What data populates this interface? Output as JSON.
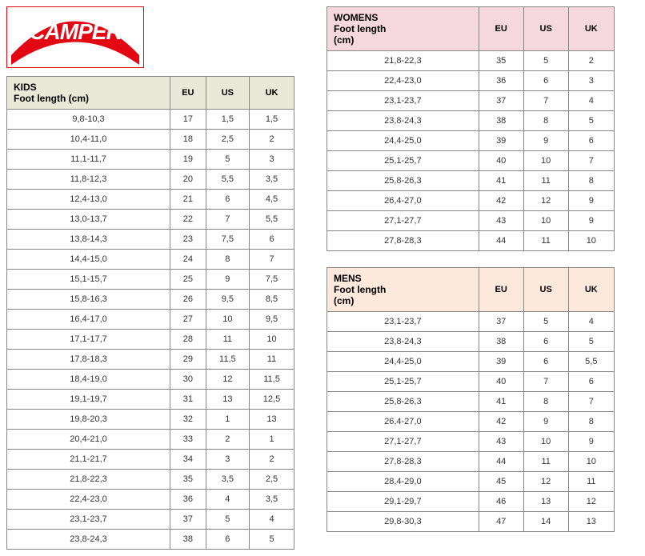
{
  "logo_text": "CAMPER",
  "kids": {
    "title_line1": "KIDS",
    "title_line2": "Foot length (cm)",
    "cols": [
      "EU",
      "US",
      "UK"
    ],
    "header_bg": "#e8e9d6",
    "rows": [
      [
        "9,8-10,3",
        "17",
        "1,5",
        "1,5"
      ],
      [
        "10,4-11,0",
        "18",
        "2,5",
        "2"
      ],
      [
        "11,1-11,7",
        "19",
        "5",
        "3"
      ],
      [
        "11,8-12,3",
        "20",
        "5,5",
        "3,5"
      ],
      [
        "12,4-13,0",
        "21",
        "6",
        "4,5"
      ],
      [
        "13,0-13,7",
        "22",
        "7",
        "5,5"
      ],
      [
        "13,8-14,3",
        "23",
        "7,5",
        "6"
      ],
      [
        "14,4-15,0",
        "24",
        "8",
        "7"
      ],
      [
        "15,1-15,7",
        "25",
        "9",
        "7,5"
      ],
      [
        "15,8-16,3",
        "26",
        "9,5",
        "8,5"
      ],
      [
        "16,4-17,0",
        "27",
        "10",
        "9,5"
      ],
      [
        "17,1-17,7",
        "28",
        "11",
        "10"
      ],
      [
        "17,8-18,3",
        "29",
        "11,5",
        "11"
      ],
      [
        "18,4-19,0",
        "30",
        "12",
        "11,5"
      ],
      [
        "19,1-19,7",
        "31",
        "13",
        "12,5"
      ],
      [
        "19,8-20,3",
        "32",
        "1",
        "13"
      ],
      [
        "20,4-21,0",
        "33",
        "2",
        "1"
      ],
      [
        "21,1-21,7",
        "34",
        "3",
        "2"
      ],
      [
        "21,8-22,3",
        "35",
        "3,5",
        "2,5"
      ],
      [
        "22,4-23,0",
        "36",
        "4",
        "3,5"
      ],
      [
        "23,1-23,7",
        "37",
        "5",
        "4"
      ],
      [
        "23,8-24,3",
        "38",
        "6",
        "5"
      ]
    ]
  },
  "womens": {
    "title_line1": "WOMENS",
    "title_line2": "Foot length",
    "title_line3": "(cm)",
    "cols": [
      "EU",
      "US",
      "UK"
    ],
    "header_bg": "#f4d7df",
    "rows": [
      [
        "21,8-22,3",
        "35",
        "5",
        "2"
      ],
      [
        "22,4-23,0",
        "36",
        "6",
        "3"
      ],
      [
        "23,1-23,7",
        "37",
        "7",
        "4"
      ],
      [
        "23,8-24,3",
        "38",
        "8",
        "5"
      ],
      [
        "24,4-25,0",
        "39",
        "9",
        "6"
      ],
      [
        "25,1-25,7",
        "40",
        "10",
        "7"
      ],
      [
        "25,8-26,3",
        "41",
        "11",
        "8"
      ],
      [
        "26,4-27,0",
        "42",
        "12",
        "9"
      ],
      [
        "27,1-27,7",
        "43",
        "10",
        "9"
      ],
      [
        "27,8-28,3",
        "44",
        "11",
        "10"
      ]
    ]
  },
  "mens": {
    "title_line1": "MENS",
    "title_line2": "Foot length",
    "title_line3": "(cm)",
    "cols": [
      "EU",
      "US",
      "UK"
    ],
    "header_bg": "#fde8dc",
    "rows": [
      [
        "23,1-23,7",
        "37",
        "5",
        "4"
      ],
      [
        "23,8-24,3",
        "38",
        "6",
        "5"
      ],
      [
        "24,4-25,0",
        "39",
        "6",
        "5,5"
      ],
      [
        "25,1-25,7",
        "40",
        "7",
        "6"
      ],
      [
        "25,8-26,3",
        "41",
        "8",
        "7"
      ],
      [
        "26,4-27,0",
        "42",
        "9",
        "8"
      ],
      [
        "27,1-27,7",
        "43",
        "10",
        "9"
      ],
      [
        "27,8-28,3",
        "44",
        "11",
        "10"
      ],
      [
        "28,4-29,0",
        "45",
        "12",
        "11"
      ],
      [
        "29,1-29,7",
        "46",
        "13",
        "12"
      ],
      [
        "29,8-30,3",
        "47",
        "14",
        "13"
      ]
    ]
  }
}
